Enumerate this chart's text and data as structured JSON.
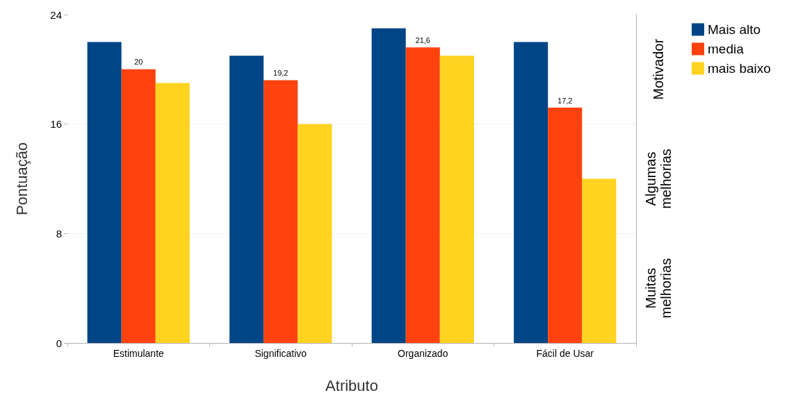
{
  "chart_data": {
    "type": "bar",
    "xlabel": "Atributo",
    "ylabel": "Pontuação",
    "categories": [
      "Estimulante",
      "Significativo",
      "Organizado",
      "Fácil de Usar"
    ],
    "series": [
      {
        "name": "Mais alto",
        "color": "#004586",
        "values": [
          22,
          21,
          23,
          22
        ]
      },
      {
        "name": "media",
        "color": "#ff420e",
        "values": [
          20,
          19.2,
          21.6,
          17.2
        ],
        "value_labels": [
          "20",
          "19,2",
          "21,6",
          "17,2"
        ]
      },
      {
        "name": "mais baixo",
        "color": "#ffd320",
        "values": [
          19,
          16,
          21,
          12
        ]
      }
    ],
    "ylim": [
      0,
      24
    ],
    "yticks": [
      0,
      8,
      16,
      24
    ],
    "bands": [
      {
        "axis": "y",
        "from": 0,
        "to": 8,
        "label": "Muitas melhorias",
        "color": "#ffffff"
      },
      {
        "axis": "y",
        "from": 8,
        "to": 16,
        "label": "Algumas melhorias",
        "color": "#ffffff"
      },
      {
        "axis": "y",
        "from": 16,
        "to": 24,
        "label": "Motivador",
        "color": "#ffffff"
      }
    ],
    "grid": "y",
    "legend": "right"
  }
}
